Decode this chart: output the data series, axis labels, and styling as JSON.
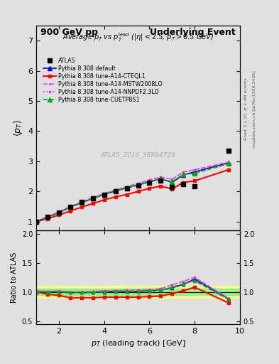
{
  "title_top_left": "900 GeV pp",
  "title_top_right": "Underlying Event",
  "subtitle": "Average $p_T$ vs $p_T^{\\mathrm{lead}}$ ($|\\eta| < 2.5$, $p_T > 0.5$ GeV)",
  "watermark": "ATLAS_2010_S8894728",
  "ylabel_main": "$\\langle p_T \\rangle$",
  "ylabel_ratio": "Ratio to ATLAS",
  "xlabel": "$p_T$ (leading track) [GeV]",
  "right_label_top": "Rivet 3.1.10, ≥ 2.4M events",
  "right_label_bottom": "mcplots.cern.ch [arXiv:1306.3436]",
  "atlas_x": [
    1.0,
    1.5,
    2.0,
    2.5,
    3.0,
    3.5,
    4.0,
    4.5,
    5.0,
    5.5,
    6.0,
    6.5,
    7.0,
    7.5,
    8.0,
    9.5
  ],
  "atlas_y": [
    1.0,
    1.15,
    1.3,
    1.5,
    1.65,
    1.78,
    1.9,
    2.0,
    2.1,
    2.2,
    2.28,
    2.35,
    2.15,
    2.25,
    2.18,
    3.35
  ],
  "default_x": [
    1.0,
    1.5,
    2.0,
    2.5,
    3.0,
    3.5,
    4.0,
    4.5,
    5.0,
    5.5,
    6.0,
    6.5,
    7.0,
    7.5,
    8.0,
    9.5
  ],
  "default_y": [
    1.0,
    1.15,
    1.3,
    1.48,
    1.63,
    1.77,
    1.9,
    2.02,
    2.12,
    2.22,
    2.32,
    2.42,
    2.3,
    2.55,
    2.65,
    2.95
  ],
  "cteql1_x": [
    1.0,
    1.5,
    2.0,
    2.5,
    3.0,
    3.5,
    4.0,
    4.5,
    5.0,
    5.5,
    6.0,
    6.5,
    7.0,
    7.5,
    8.0,
    9.5
  ],
  "cteql1_y": [
    1.0,
    1.1,
    1.22,
    1.35,
    1.48,
    1.6,
    1.72,
    1.82,
    1.9,
    2.0,
    2.1,
    2.18,
    2.08,
    2.3,
    2.35,
    2.72
  ],
  "mstw_x": [
    1.0,
    1.5,
    2.0,
    2.5,
    3.0,
    3.5,
    4.0,
    4.5,
    5.0,
    5.5,
    6.0,
    6.5,
    7.0,
    7.5,
    8.0,
    9.5
  ],
  "mstw_y": [
    1.02,
    1.16,
    1.32,
    1.5,
    1.65,
    1.8,
    1.93,
    2.05,
    2.16,
    2.27,
    2.38,
    2.48,
    2.4,
    2.65,
    2.72,
    2.98
  ],
  "nnpdf_x": [
    1.0,
    1.5,
    2.0,
    2.5,
    3.0,
    3.5,
    4.0,
    4.5,
    5.0,
    5.5,
    6.0,
    6.5,
    7.0,
    7.5,
    8.0,
    9.5
  ],
  "nnpdf_y": [
    1.02,
    1.16,
    1.32,
    1.5,
    1.65,
    1.8,
    1.93,
    2.05,
    2.16,
    2.27,
    2.38,
    2.48,
    2.4,
    2.65,
    2.72,
    2.95
  ],
  "cuetp_x": [
    1.0,
    1.5,
    2.0,
    2.5,
    3.0,
    3.5,
    4.0,
    4.5,
    5.0,
    5.5,
    6.0,
    6.5,
    7.0,
    7.5,
    8.0,
    9.5
  ],
  "cuetp_y": [
    1.0,
    1.15,
    1.3,
    1.48,
    1.63,
    1.77,
    1.9,
    2.02,
    2.12,
    2.22,
    2.32,
    2.42,
    2.32,
    2.57,
    2.6,
    2.92
  ],
  "ratio_default_y": [
    1.0,
    1.0,
    1.0,
    0.99,
    0.99,
    0.99,
    1.0,
    1.01,
    1.01,
    1.01,
    1.02,
    1.03,
    1.07,
    1.13,
    1.22,
    0.88
  ],
  "ratio_cteql1_y": [
    1.0,
    0.96,
    0.94,
    0.9,
    0.9,
    0.9,
    0.91,
    0.91,
    0.91,
    0.91,
    0.92,
    0.93,
    0.97,
    1.02,
    1.08,
    0.81
  ],
  "ratio_mstw_y": [
    1.02,
    1.01,
    1.015,
    1.0,
    1.0,
    1.01,
    1.02,
    1.025,
    1.03,
    1.03,
    1.04,
    1.055,
    1.12,
    1.18,
    1.25,
    0.89
  ],
  "ratio_nnpdf_y": [
    1.02,
    1.01,
    1.015,
    1.0,
    1.0,
    1.01,
    1.02,
    1.025,
    1.03,
    1.03,
    1.04,
    1.055,
    1.12,
    1.18,
    1.25,
    0.88
  ],
  "ratio_cuetp_y": [
    1.0,
    1.0,
    1.0,
    0.99,
    0.99,
    0.99,
    1.0,
    1.01,
    1.01,
    1.01,
    1.02,
    1.03,
    1.08,
    1.14,
    1.19,
    0.87
  ],
  "main_ylim": [
    0.7,
    7.5
  ],
  "main_yticks": [
    1,
    2,
    3,
    4,
    5,
    6,
    7
  ],
  "ratio_ylim": [
    0.45,
    2.05
  ],
  "ratio_yticks": [
    0.5,
    1.0,
    1.5,
    2.0
  ],
  "xlim": [
    1.0,
    10.0
  ],
  "xticks": [
    2,
    4,
    6,
    8,
    10
  ],
  "color_atlas": "#000000",
  "color_default": "#0000cc",
  "color_cteql1": "#ff0000",
  "color_mstw": "#ff44ff",
  "color_nnpdf": "#cc44cc",
  "color_cuetp": "#00aa00",
  "bg_color": "#e0e0e0"
}
